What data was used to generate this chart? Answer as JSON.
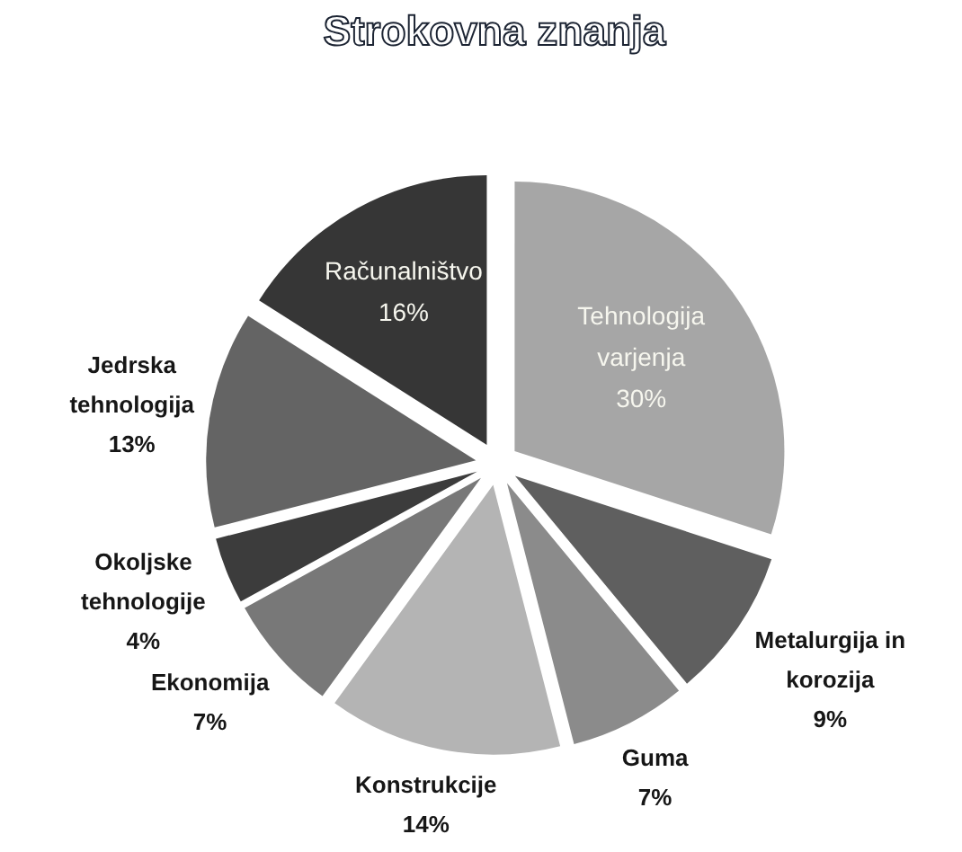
{
  "chart_data": {
    "type": "pie",
    "title": "Strokovna znanja",
    "categories": [
      "Tehnologija varjenja",
      "Metalurgija in korozija",
      "Guma",
      "Konstrukcije",
      "Ekonomija",
      "Okoljske tehnologije",
      "Jedrska tehnologija",
      "Računalništvo"
    ],
    "values": [
      30,
      9,
      7,
      14,
      7,
      4,
      13,
      16
    ],
    "colors": [
      "#a6a6a6",
      "#5f5f5f",
      "#8b8b8b",
      "#b4b4b4",
      "#787878",
      "#3c3c3c",
      "#646464",
      "#363636"
    ],
    "value_labels": [
      "30%",
      "9%",
      "7%",
      "14%",
      "7%",
      "4%",
      "13%",
      "16%"
    ],
    "legend": false
  }
}
